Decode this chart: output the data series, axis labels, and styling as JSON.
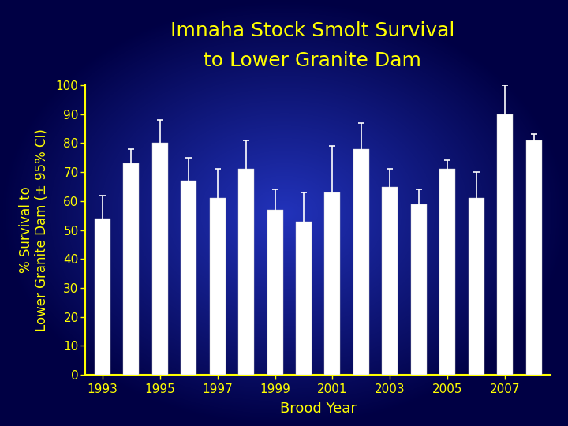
{
  "title_line1": "Imnaha Stock Smolt Survival",
  "title_line2": "to Lower Granite Dam",
  "xlabel": "Brood Year",
  "ylabel": "% Survival to\nLower Granite Dam (± 95% CI)",
  "years": [
    1993,
    1994,
    1995,
    1996,
    1997,
    1998,
    1999,
    2000,
    2001,
    2002,
    2003,
    2004,
    2005,
    2006,
    2007,
    2008
  ],
  "values": [
    54,
    73,
    80,
    67,
    61,
    71,
    57,
    53,
    63,
    78,
    65,
    59,
    71,
    61,
    90,
    81
  ],
  "errors": [
    8,
    5,
    8,
    8,
    10,
    10,
    7,
    10,
    16,
    9,
    6,
    5,
    3,
    9,
    10,
    2
  ],
  "bar_color": "#ffffff",
  "error_color": "#ffffff",
  "bg_edge_color": "#000066",
  "bg_center_color": "#2222bb",
  "title_color": "#ffff00",
  "label_color": "#ffff00",
  "tick_color": "#ffff00",
  "axis_color": "#ffff00",
  "ylim": [
    0,
    100
  ],
  "yticks": [
    0,
    10,
    20,
    30,
    40,
    50,
    60,
    70,
    80,
    90,
    100
  ],
  "title_fontsize": 18,
  "label_fontsize": 13,
  "tick_fontsize": 11,
  "bar_width": 0.55
}
